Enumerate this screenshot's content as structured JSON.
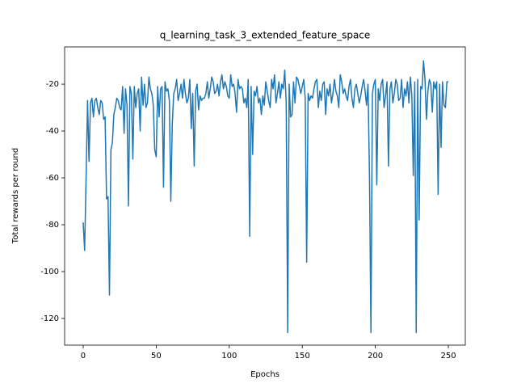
{
  "chart_data": {
    "type": "line",
    "title": "q_learning_task_3_extended_feature_space",
    "x_label": "Epochs",
    "y_label": "Total rewards per round",
    "color": "#1f77b4",
    "x": [
      0,
      1,
      2,
      3,
      4,
      5,
      6,
      7,
      8,
      9,
      10,
      11,
      12,
      13,
      14,
      15,
      16,
      17,
      18,
      19,
      20,
      21,
      22,
      23,
      24,
      25,
      26,
      27,
      28,
      29,
      30,
      31,
      32,
      33,
      34,
      35,
      36,
      37,
      38,
      39,
      40,
      41,
      42,
      43,
      44,
      45,
      46,
      47,
      48,
      49,
      50,
      51,
      52,
      53,
      54,
      55,
      56,
      57,
      58,
      59,
      60,
      61,
      62,
      63,
      64,
      65,
      66,
      67,
      68,
      69,
      70,
      71,
      72,
      73,
      74,
      75,
      76,
      77,
      78,
      79,
      80,
      81,
      82,
      83,
      84,
      85,
      86,
      87,
      88,
      89,
      90,
      91,
      92,
      93,
      94,
      95,
      96,
      97,
      98,
      99,
      100,
      101,
      102,
      103,
      104,
      105,
      106,
      107,
      108,
      109,
      110,
      111,
      112,
      113,
      114,
      115,
      116,
      117,
      118,
      119,
      120,
      121,
      122,
      123,
      124,
      125,
      126,
      127,
      128,
      129,
      130,
      131,
      132,
      133,
      134,
      135,
      136,
      137,
      138,
      139,
      140,
      141,
      142,
      143,
      144,
      145,
      146,
      147,
      148,
      149,
      150,
      151,
      152,
      153,
      154,
      155,
      156,
      157,
      158,
      159,
      160,
      161,
      162,
      163,
      164,
      165,
      166,
      167,
      168,
      169,
      170,
      171,
      172,
      173,
      174,
      175,
      176,
      177,
      178,
      179,
      180,
      181,
      182,
      183,
      184,
      185,
      186,
      187,
      188,
      189,
      190,
      191,
      192,
      193,
      194,
      195,
      196,
      197,
      198,
      199,
      200,
      201,
      202,
      203,
      204,
      205,
      206,
      207,
      208,
      209,
      210,
      211,
      212,
      213,
      214,
      215,
      216,
      217,
      218,
      219,
      220,
      221,
      222,
      223,
      224,
      225,
      226,
      227,
      228,
      229,
      230,
      231,
      232,
      233,
      234,
      235,
      236,
      237,
      238,
      239,
      240,
      241,
      242,
      243,
      244,
      245,
      246,
      247,
      248,
      249,
      250
    ],
    "values": [
      -79,
      -91,
      -60,
      -27,
      -53,
      -28,
      -26,
      -34,
      -27,
      -26,
      -30,
      -33,
      -27,
      -28,
      -35,
      -34,
      -69,
      -68,
      -110,
      -48,
      -45,
      -33,
      -30,
      -26,
      -27,
      -30,
      -31,
      -21,
      -41,
      -22,
      -29,
      -72,
      -21,
      -24,
      -52,
      -21,
      -30,
      -24,
      -22,
      -40,
      -17,
      -29,
      -20,
      -30,
      -28,
      -17,
      -22,
      -24,
      -29,
      -48,
      -51,
      -21,
      -34,
      -22,
      -21,
      -64,
      -19,
      -23,
      -22,
      -27,
      -70,
      -37,
      -24,
      -22,
      -18,
      -27,
      -24,
      -20,
      -26,
      -18,
      -24,
      -28,
      -26,
      -18,
      -39,
      -24,
      -55,
      -23,
      -20,
      -31,
      -25,
      -27,
      -26,
      -26,
      -24,
      -19,
      -26,
      -22,
      -17,
      -19,
      -24,
      -23,
      -20,
      -25,
      -19,
      -16,
      -22,
      -19,
      -21,
      -25,
      -26,
      -16,
      -21,
      -20,
      -24,
      -32,
      -18,
      -22,
      -21,
      -22,
      -28,
      -26,
      -30,
      -18,
      -85,
      -21,
      -50,
      -23,
      -25,
      -21,
      -28,
      -26,
      -33,
      -25,
      -29,
      -19,
      -23,
      -27,
      -30,
      -18,
      -22,
      -16,
      -28,
      -24,
      -19,
      -26,
      -20,
      -22,
      -14,
      -28,
      -126,
      -20,
      -34,
      -33,
      -19,
      -28,
      -17,
      -18,
      -21,
      -24,
      -21,
      -18,
      -26,
      -96,
      -24,
      -27,
      -25,
      -26,
      -22,
      -19,
      -18,
      -30,
      -23,
      -27,
      -20,
      -19,
      -33,
      -22,
      -25,
      -20,
      -28,
      -24,
      -18,
      -23,
      -25,
      -30,
      -16,
      -19,
      -24,
      -22,
      -25,
      -27,
      -21,
      -18,
      -26,
      -30,
      -22,
      -20,
      -24,
      -28,
      -25,
      -21,
      -18,
      -23,
      -29,
      -20,
      -59,
      -126,
      -24,
      -20,
      -18,
      -63,
      -22,
      -27,
      -20,
      -18,
      -30,
      -25,
      -19,
      -55,
      -22,
      -19,
      -28,
      -24,
      -18,
      -20,
      -27,
      -26,
      -18,
      -30,
      -22,
      -25,
      -19,
      -28,
      -17,
      -25,
      -59,
      -19,
      -126,
      -18,
      -78,
      -21,
      -22,
      -10,
      -18,
      -35,
      -23,
      -18,
      -20,
      -32,
      -19,
      -22,
      -19,
      -67,
      -20,
      -47,
      -19,
      -29,
      -30,
      -19,
      -19
    ],
    "xlim": [
      -12.7,
      261.6
    ],
    "ylim": [
      -131.4,
      -4.1
    ],
    "xticks": [
      0,
      50,
      100,
      150,
      200,
      250
    ],
    "yticks": [
      -120,
      -100,
      -80,
      -60,
      -40,
      -20
    ]
  }
}
